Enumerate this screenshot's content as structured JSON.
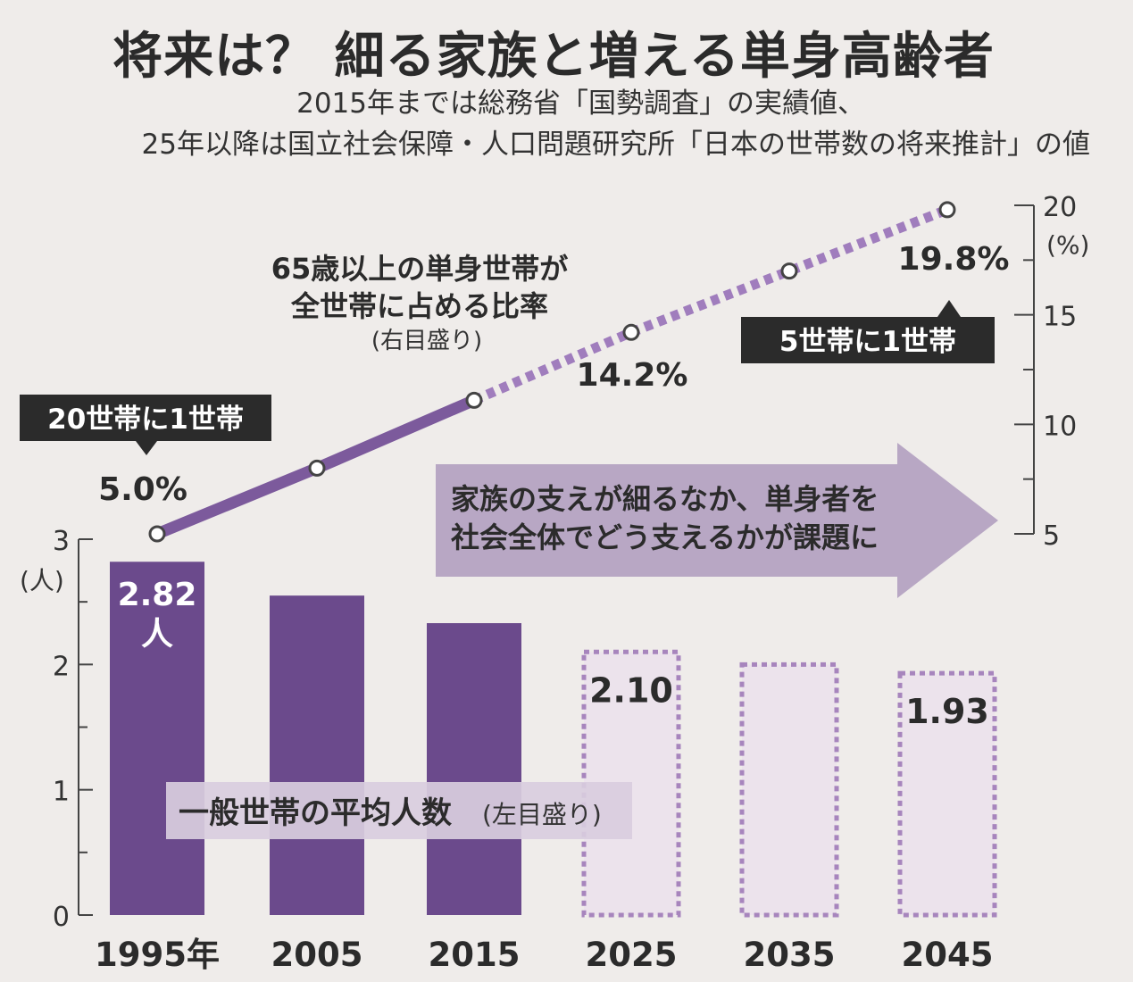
{
  "title": "将来は？ 細る家族と増える単身高齢者",
  "subtitle_line1": "2015年までは総務省「国勢調査」の実績値、",
  "subtitle_line2": "25年以降は国立社会保障・人口問題研究所「日本の世帯数の将来推計」の値",
  "colors": {
    "actual": "#6b4a8c",
    "forecast_fill": "#ece3ec",
    "forecast_border": "#a785bd",
    "line": "#7c5a9c",
    "line_dotted": "#a07dbd",
    "callout_bg": "#2b2b2b",
    "arrow": "#b8a7c4",
    "label_box": "#d9cdde"
  },
  "chart_data": {
    "type": "bar+line",
    "categories": [
      "1995年",
      "2005",
      "2015",
      "2025",
      "2035",
      "2045"
    ],
    "bars": {
      "name": "一般世帯の平均人数",
      "name_note": "(左目盛り)",
      "values": [
        2.82,
        2.55,
        2.33,
        2.1,
        2.0,
        1.93
      ],
      "forecast_from_index": 3,
      "data_labels": [
        "2.82",
        "",
        "",
        "2.10",
        "",
        "1.93"
      ],
      "data_label_unit_first": "人",
      "ylim": [
        0,
        3
      ],
      "y_ticks": [
        "0",
        "1",
        "2",
        "3"
      ],
      "y_unit": "(人)"
    },
    "line": {
      "name_line1": "65歳以上の単身世帯が",
      "name_line2": "全世帯に占める比率",
      "name_note": "(右目盛り)",
      "values": [
        5.0,
        8.0,
        11.1,
        14.2,
        17.0,
        19.8
      ],
      "forecast_from_index": 2,
      "data_labels": [
        "5.0%",
        "",
        "",
        "14.2%",
        "",
        "19.8%"
      ],
      "ylim": [
        5,
        20
      ],
      "y_ticks": [
        "5",
        "10",
        "15",
        "20"
      ],
      "y_unit": "(%)"
    },
    "callouts": [
      "20世帯に1世帯",
      "5世帯に1世帯"
    ],
    "arrow_text_line1": "家族の支えが細るなか、単身者を",
    "arrow_text_line2": "社会全体でどう支えるかが課題に"
  }
}
